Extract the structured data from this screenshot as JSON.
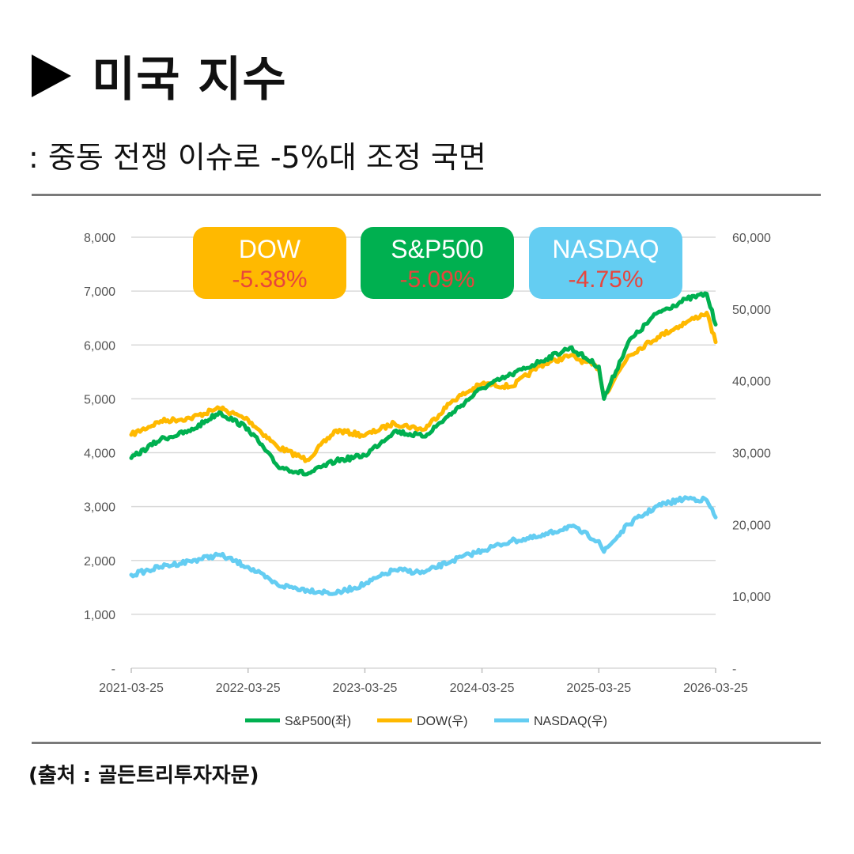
{
  "header": {
    "title": "미국 지수",
    "subtitle": ": 중동 전쟁 이슈로 -5%대 조정 국면",
    "source": "(출처 : 골든트리투자자문)"
  },
  "colors": {
    "sp500": "#00b050",
    "dow": "#ffb900",
    "nasdaq": "#64cdf2",
    "badge_value": "#e8453c"
  },
  "badges": [
    {
      "name": "DOW",
      "change": "-5.38%",
      "color": "#ffb900"
    },
    {
      "name": "S&P500",
      "change": "-5.09%",
      "color": "#00b050"
    },
    {
      "name": "NASDAQ",
      "change": "-4.75%",
      "color": "#64cdf2"
    }
  ],
  "chart_data": {
    "type": "line",
    "x": [
      "2021-03-25",
      "2021-06-25",
      "2021-09-25",
      "2021-12-25",
      "2022-03-25",
      "2022-06-25",
      "2022-09-25",
      "2022-12-25",
      "2023-03-25",
      "2023-06-25",
      "2023-09-25",
      "2023-12-25",
      "2024-03-25",
      "2024-06-25",
      "2024-09-25",
      "2024-12-25",
      "2025-03-25",
      "2025-04-10",
      "2025-06-25",
      "2025-09-25",
      "2025-12-25",
      "2026-02-25",
      "2026-03-25"
    ],
    "xticks": [
      "2021-03-25",
      "2022-03-25",
      "2023-03-25",
      "2024-03-25",
      "2025-03-25",
      "2026-03-25"
    ],
    "left_axis": {
      "ticks": [
        "-",
        "1,000",
        "2,000",
        "3,000",
        "4,000",
        "5,000",
        "6,000",
        "7,000",
        "8,000"
      ],
      "ylim": [
        0,
        8000
      ]
    },
    "right_axis": {
      "ticks": [
        "-",
        "10,000",
        "20,000",
        "30,000",
        "40,000",
        "50,000",
        "60,000"
      ],
      "ylim": [
        0,
        60000
      ]
    },
    "series": [
      {
        "name": "S&P500(좌)",
        "axis": "left",
        "values": [
          3900,
          4250,
          4400,
          4750,
          4450,
          3750,
          3600,
          3850,
          3950,
          4400,
          4300,
          4750,
          5200,
          5450,
          5700,
          5950,
          5600,
          5000,
          6050,
          6600,
          6850,
          6950,
          6380
        ]
      },
      {
        "name": "DOW(우)",
        "axis": "right",
        "values": [
          32500,
          34400,
          34800,
          36200,
          34600,
          30800,
          29000,
          33100,
          32400,
          34100,
          33200,
          37300,
          39600,
          39200,
          42200,
          43500,
          41800,
          37800,
          43500,
          46100,
          48200,
          49500,
          45400
        ]
      },
      {
        "name": "NASDAQ(우)",
        "axis": "right",
        "values": [
          13000,
          14100,
          14900,
          15800,
          14100,
          11600,
          10900,
          10400,
          11700,
          13700,
          13300,
          15000,
          16400,
          17700,
          18300,
          19800,
          17700,
          16200,
          20000,
          22600,
          23700,
          23400,
          21000
        ]
      }
    ],
    "legend_position": "bottom",
    "grid": true
  }
}
